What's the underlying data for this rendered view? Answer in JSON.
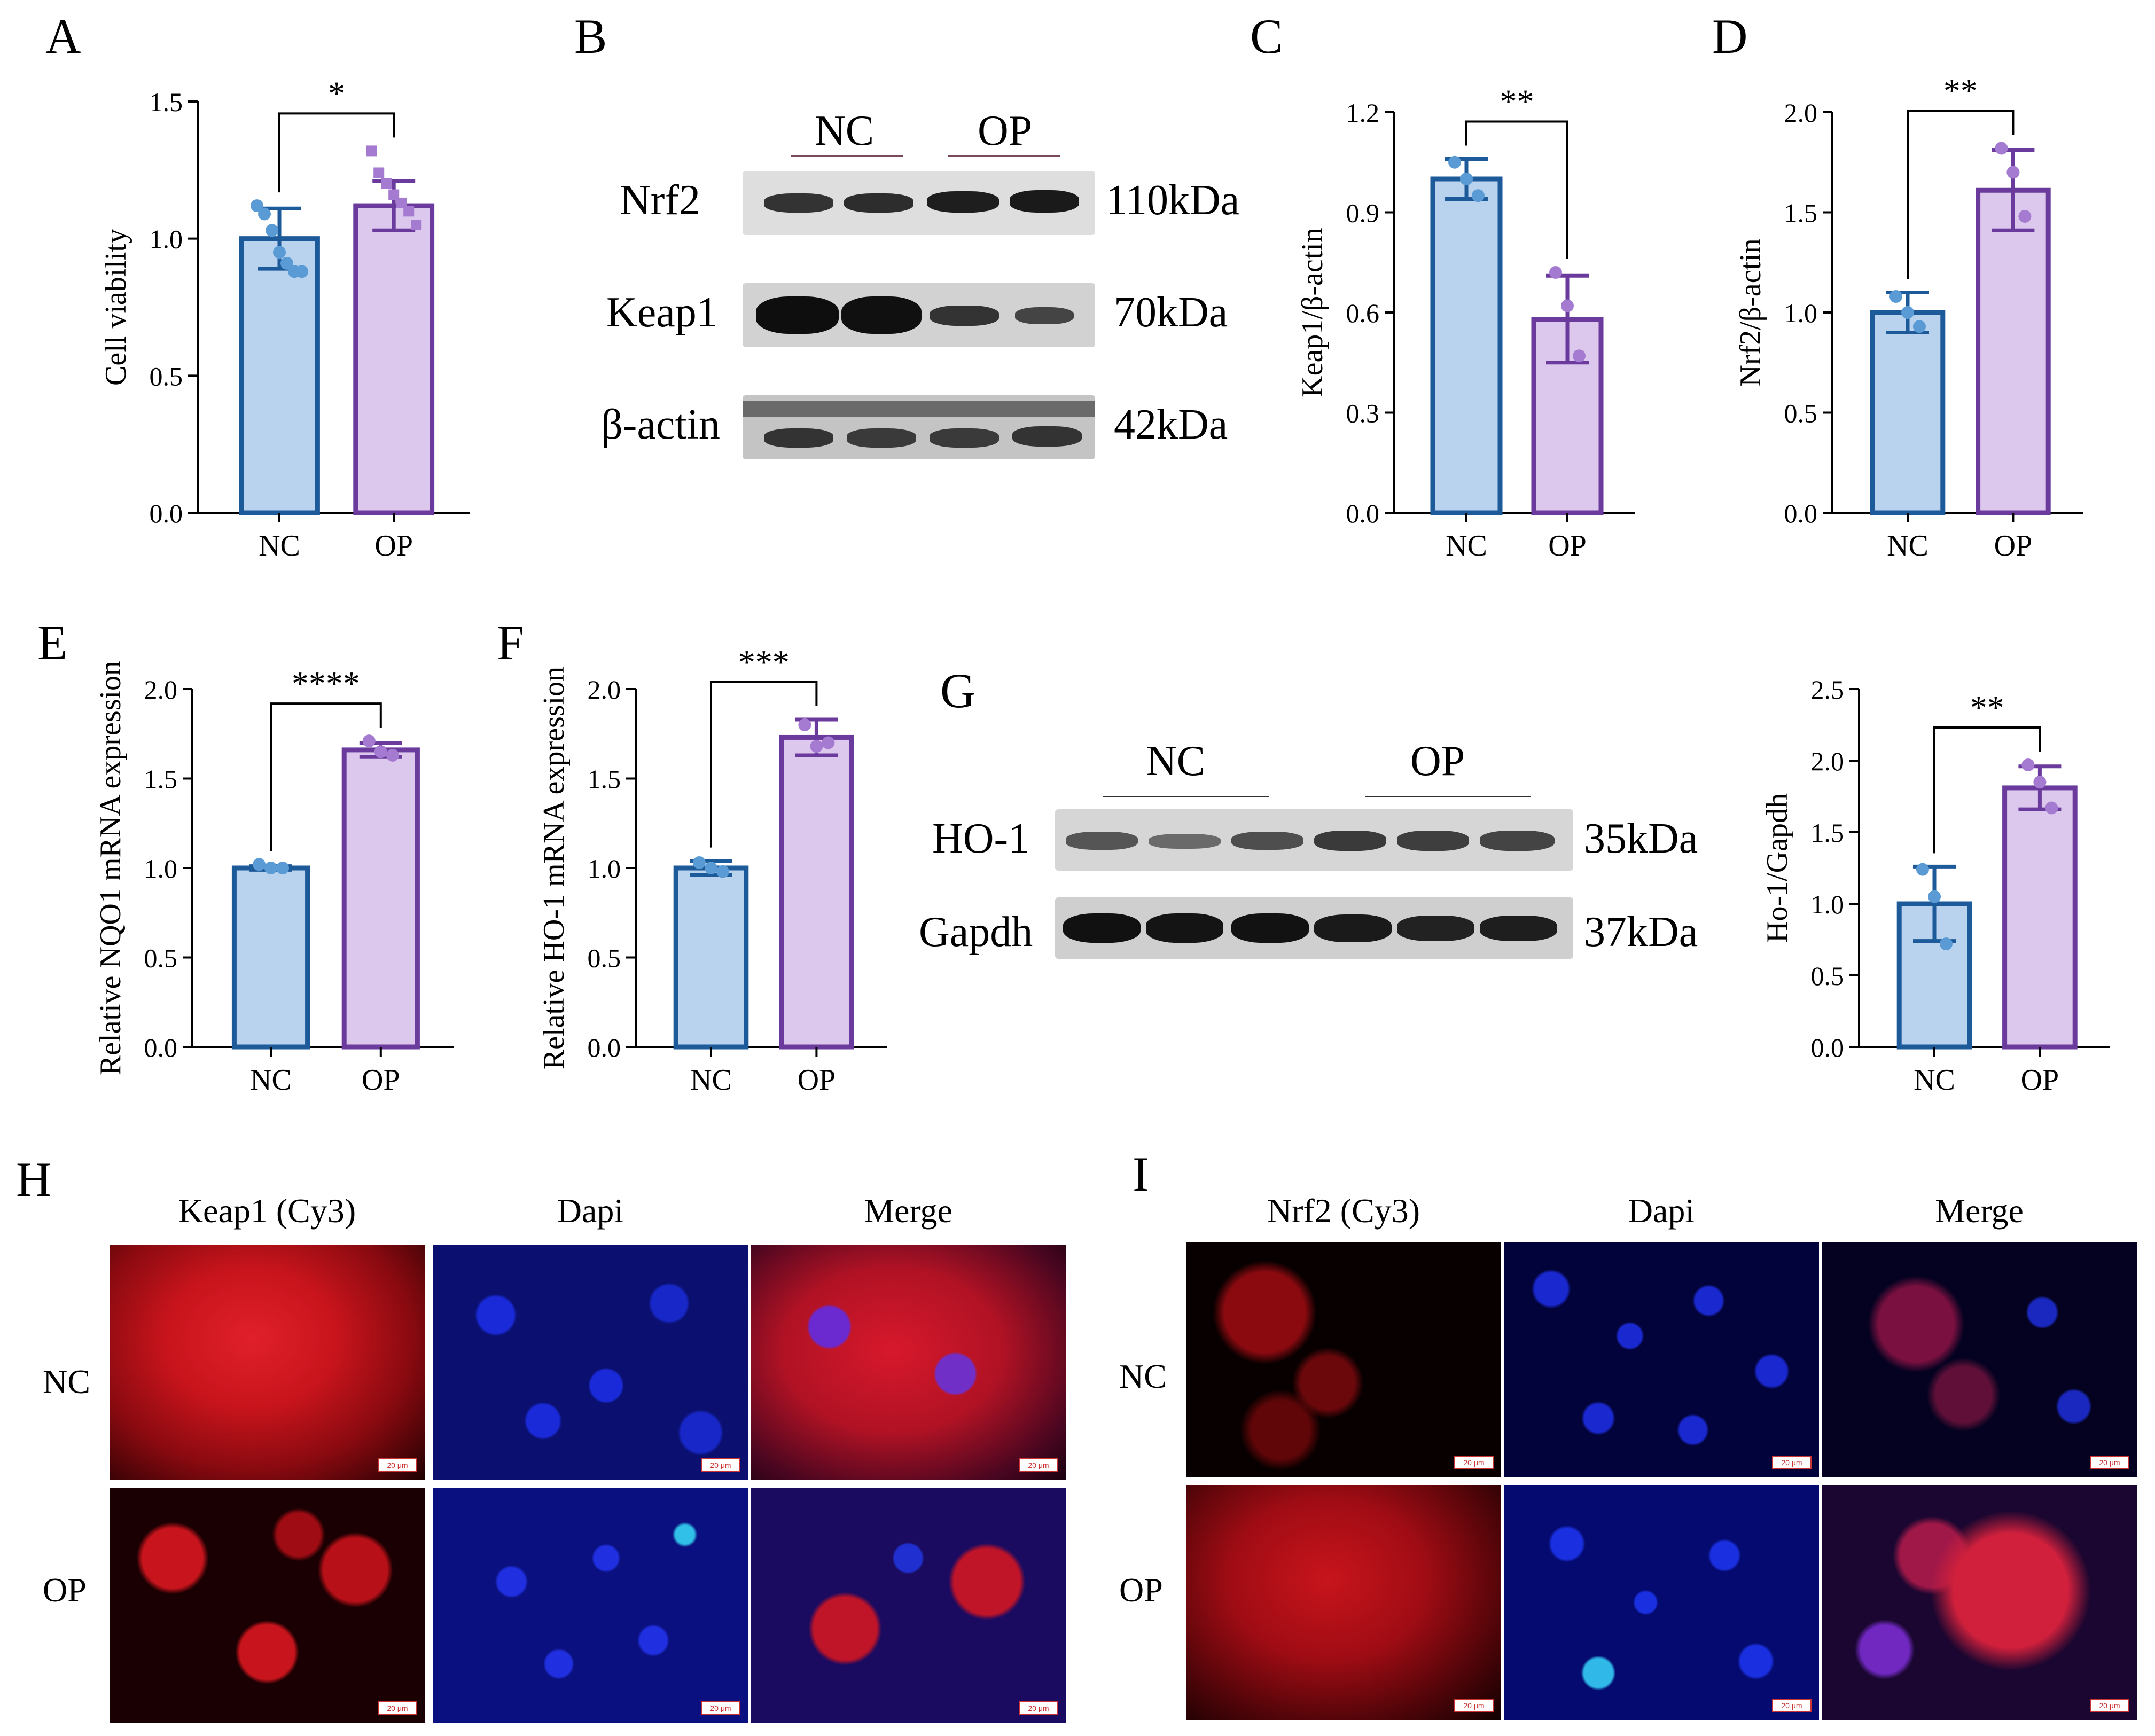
{
  "panels": {
    "A": "A",
    "B": "B",
    "C": "C",
    "D": "D",
    "E": "E",
    "F": "F",
    "G": "G",
    "H": "H",
    "I": "I"
  },
  "colors": {
    "nc_fill": "#b9d3ee",
    "nc_edge": "#1d5a9a",
    "nc_dot": "#5b9bd5",
    "op_fill": "#dcc8ec",
    "op_edge": "#6a3a9c",
    "op_dot": "#a57bd1"
  },
  "chart_data": [
    {
      "id": "A",
      "type": "bar",
      "categories": [
        "NC",
        "OP"
      ],
      "values": [
        1.0,
        1.12
      ],
      "errors": [
        0.11,
        0.09
      ],
      "points": [
        [
          1.12,
          1.09,
          1.03,
          0.95,
          0.91,
          0.88,
          0.88
        ],
        [
          1.32,
          1.24,
          1.2,
          1.16,
          1.13,
          1.1,
          1.05
        ]
      ],
      "ylabel": "Cell viability",
      "ylim": [
        0,
        1.5
      ],
      "yticks": [
        "0.0",
        "0.5",
        "1.0",
        "1.5"
      ],
      "significance": "*"
    },
    {
      "id": "C",
      "type": "bar",
      "categories": [
        "NC",
        "OP"
      ],
      "values": [
        1.0,
        0.58
      ],
      "errors": [
        0.06,
        0.13
      ],
      "points": [
        [
          1.05,
          1.0,
          0.95
        ],
        [
          0.72,
          0.62,
          0.47
        ]
      ],
      "ylabel": "Keap1/β-actin",
      "ylim": [
        0,
        1.2
      ],
      "yticks": [
        "0.0",
        "0.3",
        "0.6",
        "0.9",
        "1.2"
      ],
      "significance": "**"
    },
    {
      "id": "D",
      "type": "bar",
      "categories": [
        "NC",
        "OP"
      ],
      "values": [
        1.0,
        1.61
      ],
      "errors": [
        0.1,
        0.2
      ],
      "points": [
        [
          1.08,
          1.0,
          0.93
        ],
        [
          1.82,
          1.7,
          1.48
        ]
      ],
      "ylabel": "Nrf2/β-actin",
      "ylim": [
        0,
        2.0
      ],
      "yticks": [
        "0.0",
        "0.5",
        "1.0",
        "1.5",
        "2.0"
      ],
      "significance": "**"
    },
    {
      "id": "E",
      "type": "bar",
      "categories": [
        "NC",
        "OP"
      ],
      "values": [
        1.0,
        1.66
      ],
      "errors": [
        0.01,
        0.04
      ],
      "points": [
        [
          1.02,
          1.0,
          1.0
        ],
        [
          1.71,
          1.65,
          1.63
        ]
      ],
      "ylabel": "Relative  NQO1 mRNA expression",
      "ylim": [
        0,
        2.0
      ],
      "yticks": [
        "0.0",
        "0.5",
        "1.0",
        "1.5",
        "2.0"
      ],
      "significance": "****"
    },
    {
      "id": "F",
      "type": "bar",
      "categories": [
        "NC",
        "OP"
      ],
      "values": [
        1.0,
        1.73
      ],
      "errors": [
        0.04,
        0.1
      ],
      "points": [
        [
          1.03,
          1.0,
          0.98
        ],
        [
          1.8,
          1.68,
          1.7
        ]
      ],
      "ylabel": "Relative  HO-1 mRNA expression",
      "ylim": [
        0,
        2.0
      ],
      "yticks": [
        "0.0",
        "0.5",
        "1.0",
        "1.5",
        "2.0"
      ],
      "significance": "***"
    },
    {
      "id": "G2",
      "type": "bar",
      "categories": [
        "NC",
        "OP"
      ],
      "values": [
        1.0,
        1.81
      ],
      "errors": [
        0.26,
        0.15
      ],
      "points": [
        [
          1.24,
          1.05,
          0.72
        ],
        [
          1.97,
          1.85,
          1.67
        ]
      ],
      "ylabel": "Ho-1/Gapdh",
      "ylim": [
        0,
        2.5
      ],
      "yticks": [
        "0.0",
        "0.5",
        "1.0",
        "1.5",
        "2.0",
        "2.5"
      ],
      "significance": "**"
    }
  ],
  "blot_B": {
    "groups": [
      "NC",
      "OP"
    ],
    "rows": [
      {
        "label": "Nrf2",
        "kda": "110kDa"
      },
      {
        "label": "Keap1",
        "kda": "70kDa"
      },
      {
        "label": "β-actin",
        "kda": "42kDa"
      }
    ]
  },
  "blot_G": {
    "groups": [
      "NC",
      "OP"
    ],
    "rows": [
      {
        "label": "HO-1",
        "kda": "35kDa"
      },
      {
        "label": "Gapdh",
        "kda": "37kDa"
      }
    ]
  },
  "fluor_H": {
    "titles": [
      "Keap1 (Cy3)",
      "Dapi",
      "Merge"
    ],
    "rows": [
      "NC",
      "OP"
    ],
    "scale": "20 μm"
  },
  "fluor_I": {
    "titles": [
      "Nrf2 (Cy3)",
      "Dapi",
      "Merge"
    ],
    "rows": [
      "NC",
      "OP"
    ],
    "scale": "20 μm"
  }
}
